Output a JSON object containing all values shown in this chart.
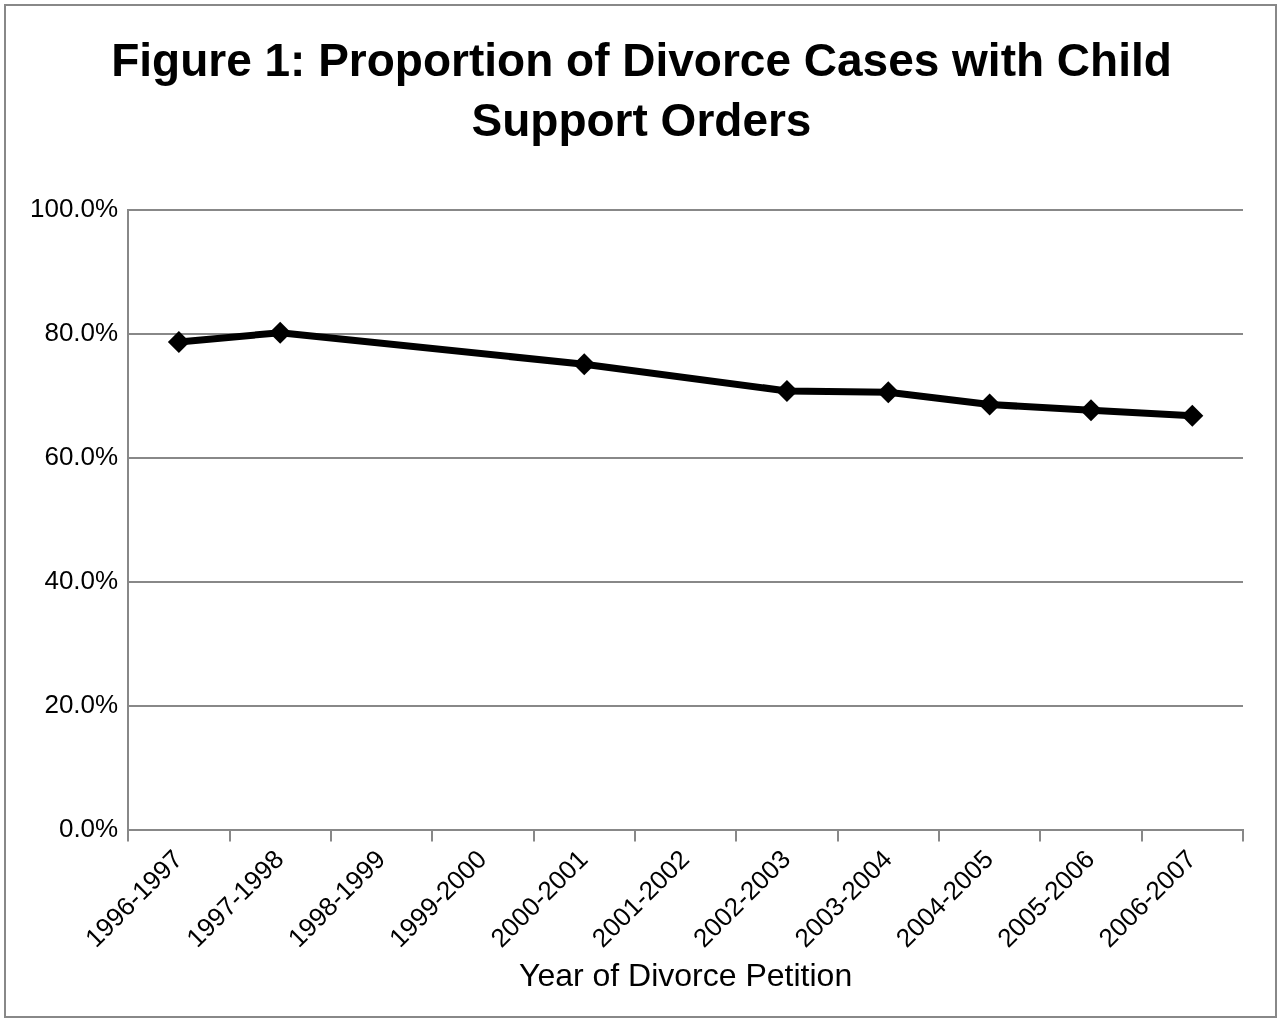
{
  "chart_data": {
    "type": "line",
    "title": "Figure 1: Proportion of Divorce Cases with Child Support Orders",
    "xlabel": "Year of Divorce Petition",
    "categories": [
      "1996-1997",
      "1997-1998",
      "1998-1999",
      "1999-2000",
      "2000-2001",
      "2001-2002",
      "2002-2003",
      "2003-2004",
      "2004-2005",
      "2005-2006",
      "2006-2007"
    ],
    "series": [
      {
        "color": "#000000",
        "values": [
          78.7,
          80.2,
          null,
          null,
          75.1,
          null,
          70.8,
          70.6,
          68.6,
          67.7,
          66.8
        ]
      }
    ],
    "ylim": [
      0,
      100
    ],
    "yticks": [
      {
        "value": 0,
        "label": "0.0%"
      },
      {
        "value": 20,
        "label": "20.0%"
      },
      {
        "value": 40,
        "label": "40.0%"
      },
      {
        "value": 60,
        "label": "60.0%"
      },
      {
        "value": 80,
        "label": "80.0%"
      },
      {
        "value": 100,
        "label": "100.0%"
      }
    ],
    "grid": "y",
    "legend": false,
    "marker": "diamond",
    "line_style": "solid"
  }
}
